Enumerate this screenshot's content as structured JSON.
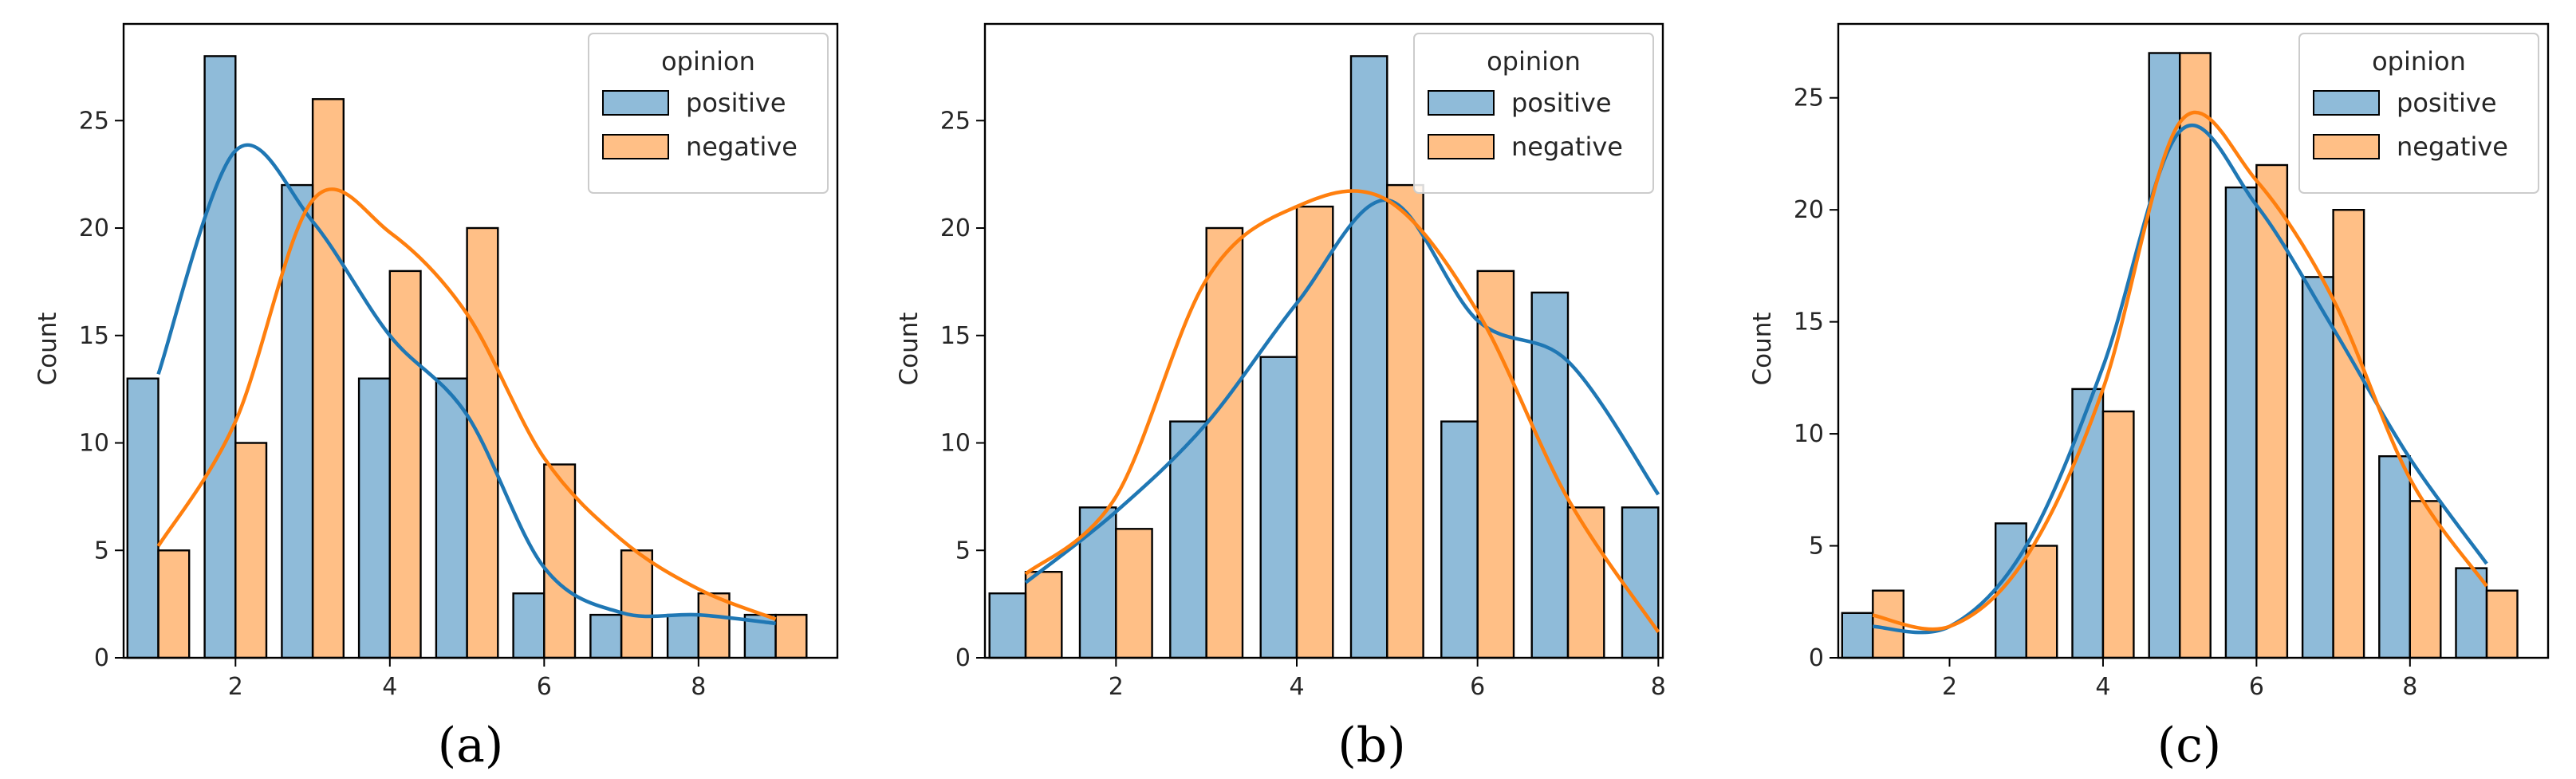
{
  "figure": {
    "palette": {
      "positive": "#1f77b4",
      "negative": "#ff7f0e",
      "frame": "#000000",
      "text": "#262626"
    }
  },
  "chart_data": [
    {
      "type": "bar",
      "panel_label": "(a)",
      "ylabel": "Count",
      "xlabel": "",
      "xlim": [
        0.55,
        9.8
      ],
      "ylim": [
        0,
        29.5
      ],
      "xticks": [
        2,
        4,
        6,
        8
      ],
      "yticks": [
        0,
        5,
        10,
        15,
        20,
        25
      ],
      "bin_centers": [
        1,
        2,
        3,
        4,
        5,
        6,
        7,
        8,
        9
      ],
      "legend": {
        "title": "opinion",
        "labels": [
          "positive",
          "negative"
        ],
        "placement": "upper right"
      },
      "series": [
        {
          "name": "positive",
          "values": [
            13,
            28,
            22,
            13,
            13,
            3,
            2,
            2,
            2
          ],
          "kde": [
            13.2,
            23.6,
            20.3,
            15.0,
            11.3,
            4.2,
            2.1,
            2.0,
            1.6
          ]
        },
        {
          "name": "negative",
          "values": [
            5,
            10,
            26,
            18,
            20,
            9,
            5,
            3,
            2
          ],
          "kde": [
            5.2,
            11.0,
            21.3,
            19.8,
            16.0,
            9.3,
            5.5,
            3.2,
            1.8
          ]
        }
      ]
    },
    {
      "type": "bar",
      "panel_label": "(b)",
      "ylabel": "Count",
      "xlabel": "",
      "xlim": [
        0.55,
        8.05
      ],
      "ylim": [
        0,
        29.5
      ],
      "xticks": [
        2,
        4,
        6,
        8
      ],
      "yticks": [
        0,
        5,
        10,
        15,
        20,
        25
      ],
      "bin_centers": [
        1,
        2,
        3,
        4,
        5,
        6,
        7,
        8
      ],
      "legend": {
        "title": "opinion",
        "labels": [
          "positive",
          "negative"
        ],
        "placement": "upper right"
      },
      "series": [
        {
          "name": "positive",
          "values": [
            3,
            7,
            11,
            14,
            28,
            11,
            17,
            7
          ],
          "kde": [
            3.5,
            6.8,
            10.9,
            16.5,
            21.3,
            15.7,
            13.8,
            7.6
          ]
        },
        {
          "name": "negative",
          "values": [
            4,
            6,
            20,
            21,
            22,
            18,
            7,
            0
          ],
          "kde": [
            3.9,
            7.5,
            17.6,
            21.0,
            21.3,
            16.1,
            7.4,
            1.2
          ]
        }
      ]
    },
    {
      "type": "bar",
      "panel_label": "(c)",
      "ylabel": "Count",
      "xlabel": "",
      "xlim": [
        0.55,
        9.8
      ],
      "ylim": [
        0,
        28.3
      ],
      "xticks": [
        2,
        4,
        6,
        8
      ],
      "yticks": [
        0,
        5,
        10,
        15,
        20,
        25
      ],
      "bin_centers": [
        1,
        2,
        3,
        4,
        5,
        6,
        7,
        8,
        9
      ],
      "legend": {
        "title": "opinion",
        "labels": [
          "positive",
          "negative"
        ],
        "placement": "upper right"
      },
      "series": [
        {
          "name": "positive",
          "values": [
            2,
            0,
            6,
            12,
            27,
            21,
            17,
            9,
            4
          ],
          "kde": [
            1.4,
            1.4,
            5.0,
            13.0,
            23.5,
            20.2,
            14.7,
            8.9,
            4.2
          ]
        },
        {
          "name": "negative",
          "values": [
            3,
            0,
            5,
            11,
            27,
            22,
            20,
            7,
            3
          ],
          "kde": [
            1.9,
            1.4,
            4.5,
            12.0,
            23.9,
            21.3,
            16.0,
            8.0,
            3.2
          ]
        }
      ]
    }
  ]
}
